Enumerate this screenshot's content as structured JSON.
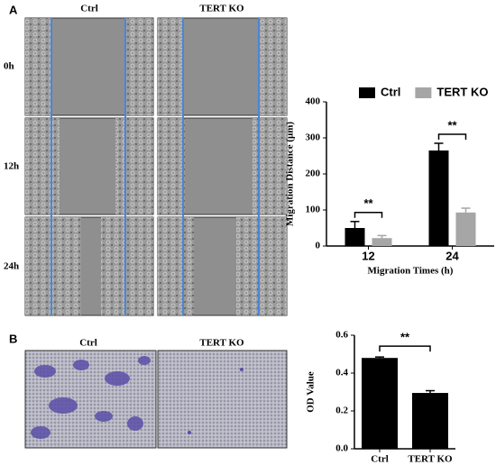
{
  "panels": [
    {
      "label": "A",
      "column_headers": [
        "Ctrl",
        "TERT KO"
      ],
      "row_labels": [
        "0h",
        "12h",
        "24h"
      ]
    },
    {
      "label": "B",
      "column_headers": [
        "Ctrl",
        "TERT KO"
      ]
    }
  ],
  "chart_data": [
    {
      "type": "bar",
      "categories": [
        "12",
        "24"
      ],
      "series": [
        {
          "name": "Ctrl",
          "color": "#000000",
          "values": [
            50,
            265
          ],
          "errors": [
            18,
            20
          ]
        },
        {
          "name": "TERT KO",
          "color": "#a6a6a6",
          "values": [
            22,
            93
          ],
          "errors": [
            7,
            12
          ]
        }
      ],
      "ylim": [
        0,
        400
      ],
      "yticks": [
        0,
        100,
        200,
        300,
        400
      ],
      "y_label": "Migration Distance (μm)",
      "x_label": "Migration Times (h)",
      "annotations": [
        "**",
        "**"
      ],
      "legend": "top"
    },
    {
      "type": "bar",
      "categories": [
        "Ctrl",
        "TERT KO"
      ],
      "values": [
        0.48,
        0.295
      ],
      "errors": [
        0.005,
        0.012
      ],
      "color": "#000000",
      "ylim": [
        0,
        0.6
      ],
      "yticks": [
        {
          "value": 0,
          "label": "0.0"
        },
        0.2,
        0.4,
        0.6
      ],
      "y_label": "OD Value",
      "annotations": [
        "**"
      ]
    }
  ]
}
